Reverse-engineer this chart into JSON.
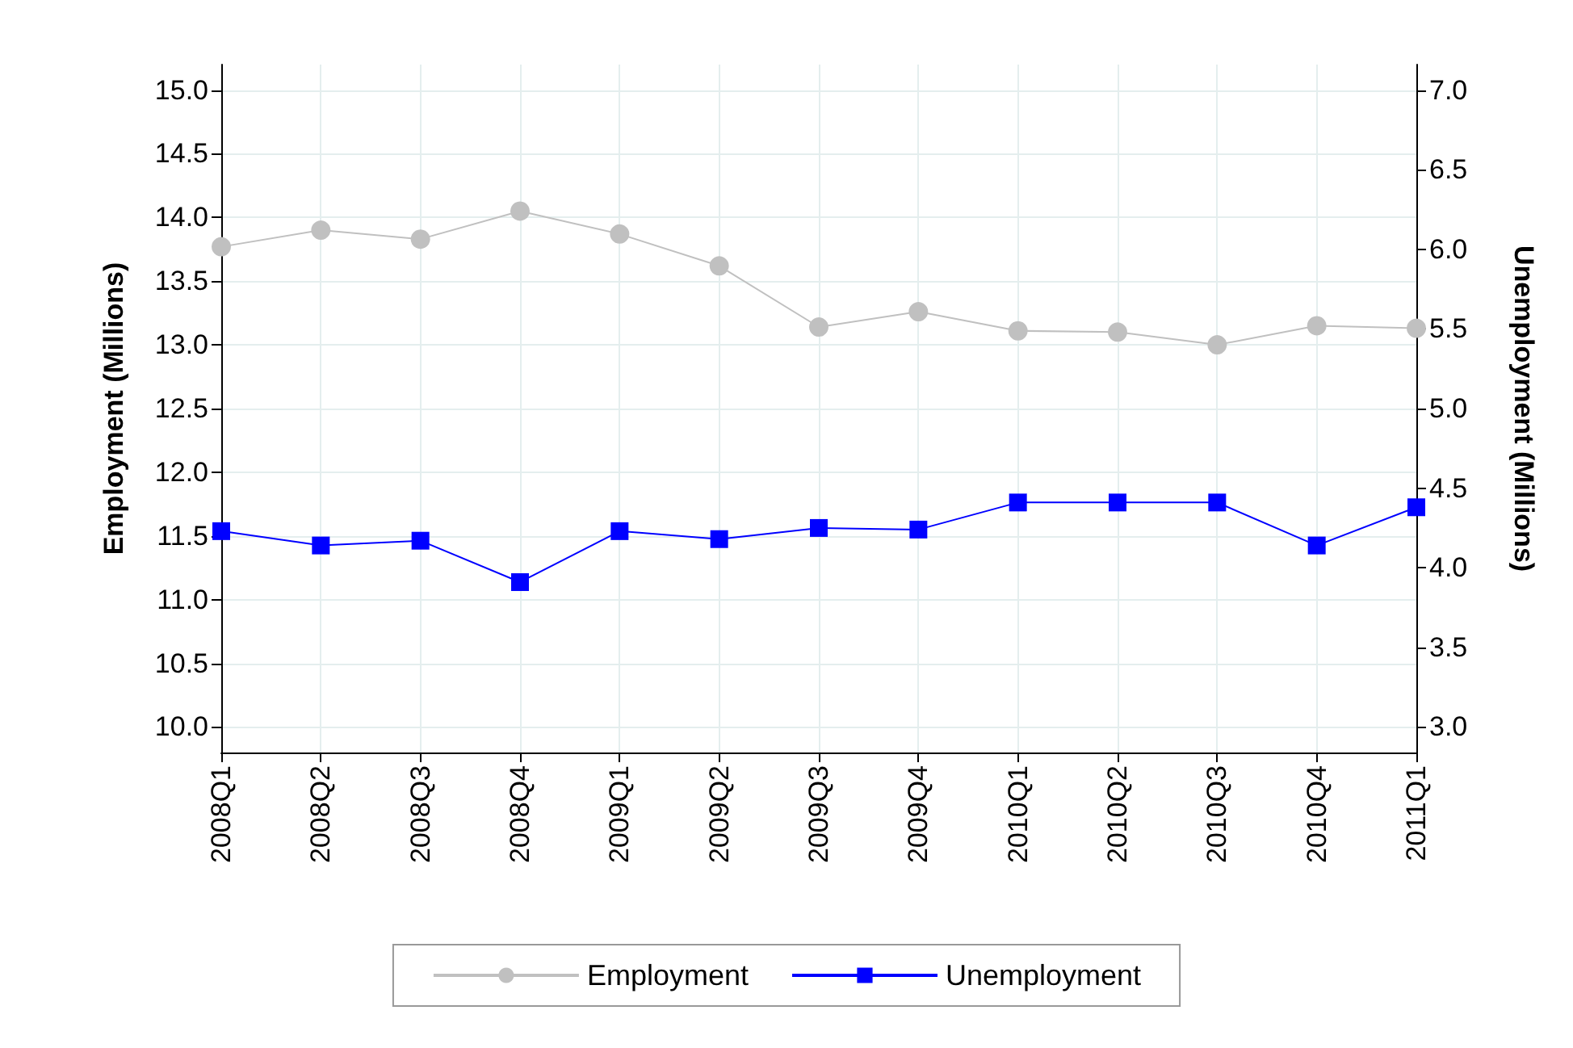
{
  "chart_data": {
    "type": "line",
    "ylabel": "Employment (Millions)",
    "y2label": "Unemployment (Millions)",
    "categories": [
      "2008Q1",
      "2008Q2",
      "2008Q3",
      "2008Q4",
      "2009Q1",
      "2009Q2",
      "2009Q3",
      "2009Q4",
      "2010Q1",
      "2010Q2",
      "2010Q3",
      "2010Q4",
      "2011Q1"
    ],
    "series": [
      {
        "name": "Employment",
        "color": "#c0c0c0",
        "marker": "circle",
        "values": [
          13.77,
          13.9,
          13.83,
          14.05,
          13.87,
          13.62,
          13.14,
          13.26,
          13.11,
          13.1,
          13.0,
          13.15,
          13.13
        ]
      },
      {
        "name": "Unemployment",
        "color": "#0000ff",
        "marker": "square",
        "axis": "y2",
        "values": [
          4.23,
          4.14,
          4.17,
          3.91,
          4.23,
          4.18,
          4.25,
          4.24,
          4.41,
          4.41,
          4.41,
          4.14,
          4.38
        ]
      }
    ],
    "ylim": [
      9.8,
      15.2
    ],
    "yticks": [
      {
        "value": 10,
        "label": "10.0"
      },
      10.5,
      {
        "value": 11,
        "label": "11.0"
      },
      11.5,
      {
        "value": 12,
        "label": "12.0"
      },
      12.5,
      {
        "value": 13,
        "label": "13.0"
      },
      13.5,
      {
        "value": 14,
        "label": "14.0"
      },
      14.5,
      {
        "value": 15,
        "label": "15.0"
      }
    ],
    "y2lim": [
      2.84,
      7.16
    ],
    "y2ticks": [
      {
        "value": 3,
        "label": "3.0"
      },
      3.5,
      {
        "value": 4,
        "label": "4.0"
      },
      4.5,
      {
        "value": 5,
        "label": "5.0"
      },
      5.5,
      {
        "value": 6,
        "label": "6.0"
      },
      6.5,
      {
        "value": 7,
        "label": "7.0"
      }
    ],
    "grid": true,
    "legend": "bottom",
    "line_style": "solid"
  }
}
